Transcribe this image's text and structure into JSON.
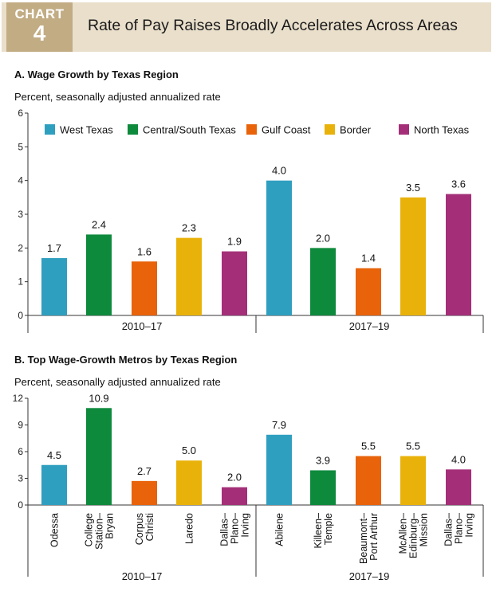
{
  "header": {
    "chart_label": "CHART",
    "chart_number": "4",
    "title": "Rate of Pay Raises Broadly Accelerates Across Areas"
  },
  "colors": {
    "West Texas": "#2f9fbf",
    "Central/South Texas": "#0e8a3c",
    "Gulf Coast": "#e8630a",
    "Border": "#e9b20a",
    "North Texas": "#a42f78",
    "header_bg": "#e9dfcb",
    "tag_bg": "#c2ac84"
  },
  "chart_data": [
    {
      "type": "bar",
      "title": "A. Wage Growth by Texas Region",
      "subtitle": "Percent, seasonally adjusted annualized rate",
      "legend": [
        "West Texas",
        "Central/South Texas",
        "Gulf Coast",
        "Border",
        "North Texas"
      ],
      "legend_position": "top",
      "ylim": [
        0,
        6
      ],
      "yticks": [
        "0",
        "1",
        "2",
        "3",
        "4",
        "5",
        "6"
      ],
      "groups": [
        {
          "label": "2010–17",
          "bars": [
            {
              "region": "West Texas",
              "value": 1.7,
              "label": "1.7"
            },
            {
              "region": "Central/South Texas",
              "value": 2.4,
              "label": "2.4"
            },
            {
              "region": "Gulf Coast",
              "value": 1.6,
              "label": "1.6"
            },
            {
              "region": "Border",
              "value": 2.3,
              "label": "2.3"
            },
            {
              "region": "North Texas",
              "value": 1.9,
              "label": "1.9"
            }
          ]
        },
        {
          "label": "2017–19",
          "bars": [
            {
              "region": "West Texas",
              "value": 4.0,
              "label": "4.0"
            },
            {
              "region": "Central/South Texas",
              "value": 2.0,
              "label": "2.0"
            },
            {
              "region": "Gulf Coast",
              "value": 1.4,
              "label": "1.4"
            },
            {
              "region": "Border",
              "value": 3.5,
              "label": "3.5"
            },
            {
              "region": "North Texas",
              "value": 3.6,
              "label": "3.6"
            }
          ]
        }
      ]
    },
    {
      "type": "bar",
      "title": "B. Top Wage-Growth Metros by Texas Region",
      "subtitle": "Percent, seasonally adjusted annualized rate",
      "ylim": [
        0,
        12
      ],
      "yticks": [
        "0",
        "3",
        "6",
        "9",
        "12"
      ],
      "groups": [
        {
          "label": "2010–17",
          "bars": [
            {
              "region": "West Texas",
              "value": 4.5,
              "label": "4.5",
              "metro": [
                "Odessa"
              ]
            },
            {
              "region": "Central/South Texas",
              "value": 10.9,
              "label": "10.9",
              "metro": [
                "College",
                "Station–",
                "Bryan"
              ]
            },
            {
              "region": "Gulf Coast",
              "value": 2.7,
              "label": "2.7",
              "metro": [
                "Corpus",
                "Christi"
              ]
            },
            {
              "region": "Border",
              "value": 5.0,
              "label": "5.0",
              "metro": [
                "Laredo"
              ]
            },
            {
              "region": "North Texas",
              "value": 2.0,
              "label": "2.0",
              "metro": [
                "Dallas–",
                "Plano–",
                "Irving"
              ]
            }
          ]
        },
        {
          "label": "2017–19",
          "bars": [
            {
              "region": "West Texas",
              "value": 7.9,
              "label": "7.9",
              "metro": [
                "Abilene"
              ]
            },
            {
              "region": "Central/South Texas",
              "value": 3.9,
              "label": "3.9",
              "metro": [
                "Killeen–",
                "Temple"
              ]
            },
            {
              "region": "Gulf Coast",
              "value": 5.5,
              "label": "5.5",
              "metro": [
                "Beaumont–",
                "Port Arthur"
              ]
            },
            {
              "region": "Border",
              "value": 5.5,
              "label": "5.5",
              "metro": [
                "McAllen–",
                "Edinburg–",
                "Mission"
              ]
            },
            {
              "region": "North Texas",
              "value": 4.0,
              "label": "4.0",
              "metro": [
                "Dallas–",
                "Plano–",
                "Irving"
              ]
            }
          ]
        }
      ]
    }
  ]
}
